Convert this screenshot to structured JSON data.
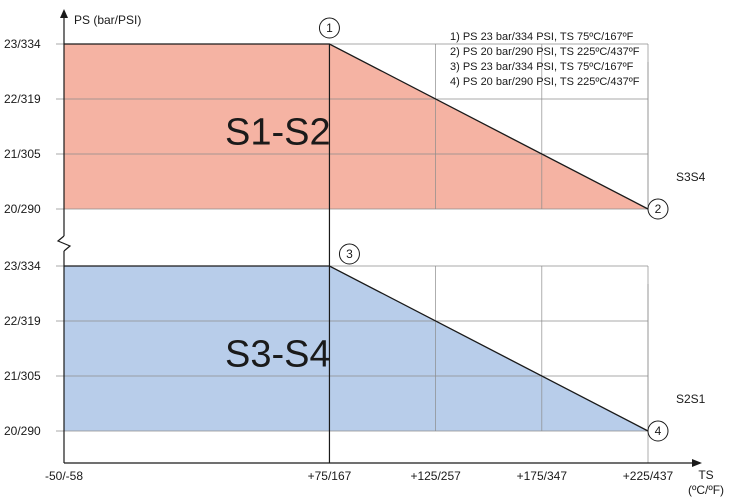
{
  "chart_data": {
    "type": "area",
    "ylabel": "PS (bar/PSI)",
    "xlabel": "TS",
    "xlabel_unit": "(ºC/ºF)",
    "x_ticks": [
      "-50/-58",
      "+75/167",
      "+125/257",
      "+175/347",
      "+225/437"
    ],
    "x": [
      -50,
      75,
      125,
      175,
      225
    ],
    "y_ticks": [
      "20/290",
      "21/305",
      "22/319",
      "23/334"
    ],
    "ylim_bar": [
      20,
      23
    ],
    "xlim_c": [
      -50,
      225
    ],
    "axis_break": true,
    "grid": true,
    "panels": [
      {
        "name": "S1-S2",
        "color": "#f5b3a3",
        "curve": [
          [
            -50,
            23
          ],
          [
            75,
            23
          ],
          [
            225,
            20
          ]
        ],
        "side_label": "S3S4"
      },
      {
        "name": "S3-S4",
        "color": "#b8cdea",
        "curve": [
          [
            -50,
            23
          ],
          [
            75,
            23
          ],
          [
            225,
            20
          ]
        ],
        "side_label": "S2S1"
      }
    ],
    "points": [
      {
        "id": "1",
        "x": 75,
        "y": 23,
        "panel": 0
      },
      {
        "id": "2",
        "x": 225,
        "y": 20,
        "panel": 0
      },
      {
        "id": "3",
        "x": 75,
        "y": 23,
        "panel": 1
      },
      {
        "id": "4",
        "x": 225,
        "y": 20,
        "panel": 1
      }
    ],
    "legend": [
      "1) PS 23 bar/334 PSI, TS 75ºC/167ºF",
      "2) PS 20 bar/290 PSI, TS 225ºC/437ºF",
      "3) PS 23 bar/334 PSI, TS 75ºC/167ºF",
      "4) PS 20 bar/290 PSI, TS 225ºC/437ºF"
    ],
    "legend_position": "top-right"
  }
}
